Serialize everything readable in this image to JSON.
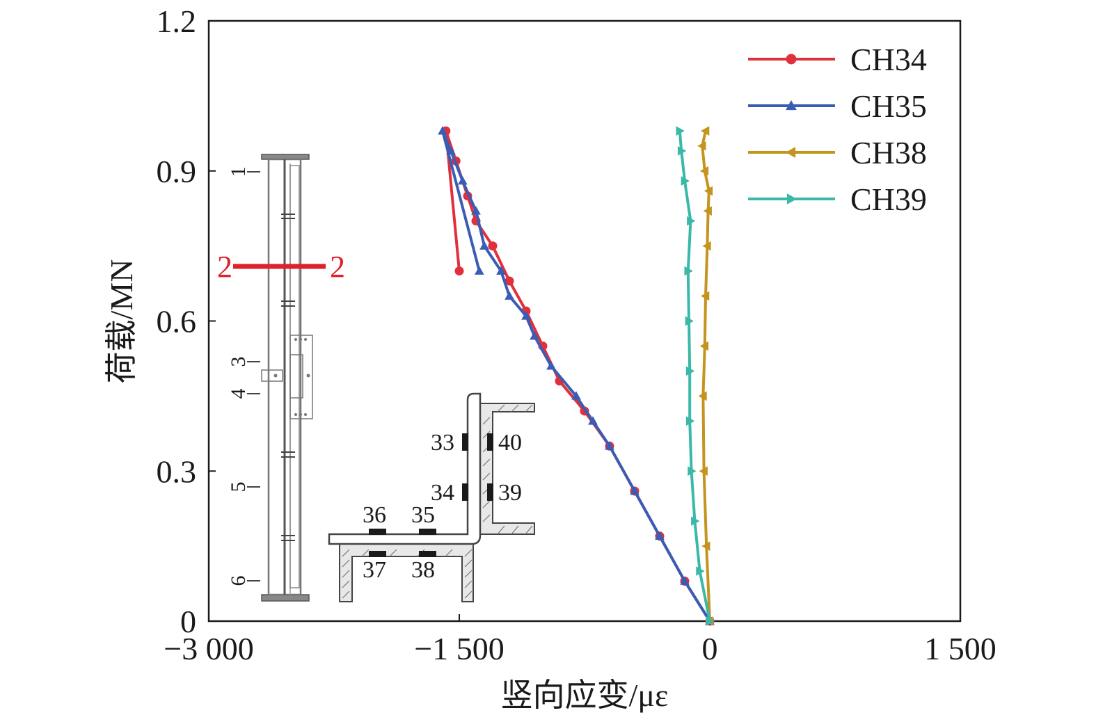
{
  "chart_data": {
    "type": "line",
    "xlabel": "竖向应变/με",
    "ylabel": "荷载/MN",
    "xlim": [
      -3000,
      1500
    ],
    "ylim": [
      0,
      1.2
    ],
    "xticks": [
      {
        "value": -3000,
        "label": "−3 000"
      },
      {
        "value": -1500,
        "label": "−1 500"
      },
      {
        "value": 0,
        "label": "0"
      },
      {
        "value": 1500,
        "label": "1 500"
      }
    ],
    "yticks": [
      {
        "value": 0,
        "label": "0"
      },
      {
        "value": 0.3,
        "label": "0.3"
      },
      {
        "value": 0.6,
        "label": "0.6"
      },
      {
        "value": 0.9,
        "label": "0.9"
      },
      {
        "value": 1.2,
        "label": "1.2"
      }
    ],
    "grid": false,
    "legend_position": "top-right",
    "series": [
      {
        "name": "CH34",
        "color": "#e0303c",
        "marker": "circle",
        "x": [
          0,
          -150,
          -300,
          -450,
          -600,
          -750,
          -900,
          -1000,
          -1100,
          -1200,
          -1300,
          -1400,
          -1450,
          -1520,
          -1580,
          -1500
        ],
        "y": [
          0,
          0.08,
          0.17,
          0.26,
          0.35,
          0.42,
          0.48,
          0.55,
          0.62,
          0.68,
          0.75,
          0.8,
          0.85,
          0.92,
          0.98,
          0.7
        ]
      },
      {
        "name": "CH35",
        "color": "#3a5cb5",
        "marker": "triangle-up",
        "x": [
          0,
          -150,
          -300,
          -450,
          -600,
          -700,
          -800,
          -950,
          -1050,
          -1100,
          -1200,
          -1250,
          -1350,
          -1400,
          -1480,
          -1550,
          -1600,
          -1380
        ],
        "y": [
          0,
          0.08,
          0.17,
          0.26,
          0.35,
          0.4,
          0.45,
          0.51,
          0.57,
          0.61,
          0.65,
          0.7,
          0.75,
          0.82,
          0.88,
          0.94,
          0.98,
          0.7
        ]
      },
      {
        "name": "CH38",
        "color": "#c4941e",
        "marker": "triangle-left",
        "x": [
          0,
          -20,
          -35,
          -40,
          -30,
          -25,
          -15,
          -10,
          -5,
          -30,
          -45,
          -25
        ],
        "y": [
          0,
          0.15,
          0.3,
          0.45,
          0.55,
          0.65,
          0.75,
          0.82,
          0.86,
          0.9,
          0.95,
          0.98
        ]
      },
      {
        "name": "CH39",
        "color": "#3ab8a8",
        "marker": "triangle-right",
        "x": [
          0,
          -60,
          -90,
          -110,
          -120,
          -120,
          -125,
          -130,
          -115,
          -150,
          -170,
          -180
        ],
        "y": [
          0,
          0.1,
          0.2,
          0.3,
          0.4,
          0.5,
          0.6,
          0.7,
          0.8,
          0.88,
          0.94,
          0.98
        ]
      }
    ],
    "annotations": {
      "section_label_left": "2",
      "section_label_right": "2",
      "column_labels": [
        "1",
        "3",
        "4",
        "5",
        "6"
      ],
      "gauge_labels": [
        "33",
        "34",
        "35",
        "36",
        "37",
        "38",
        "39",
        "40"
      ]
    }
  }
}
